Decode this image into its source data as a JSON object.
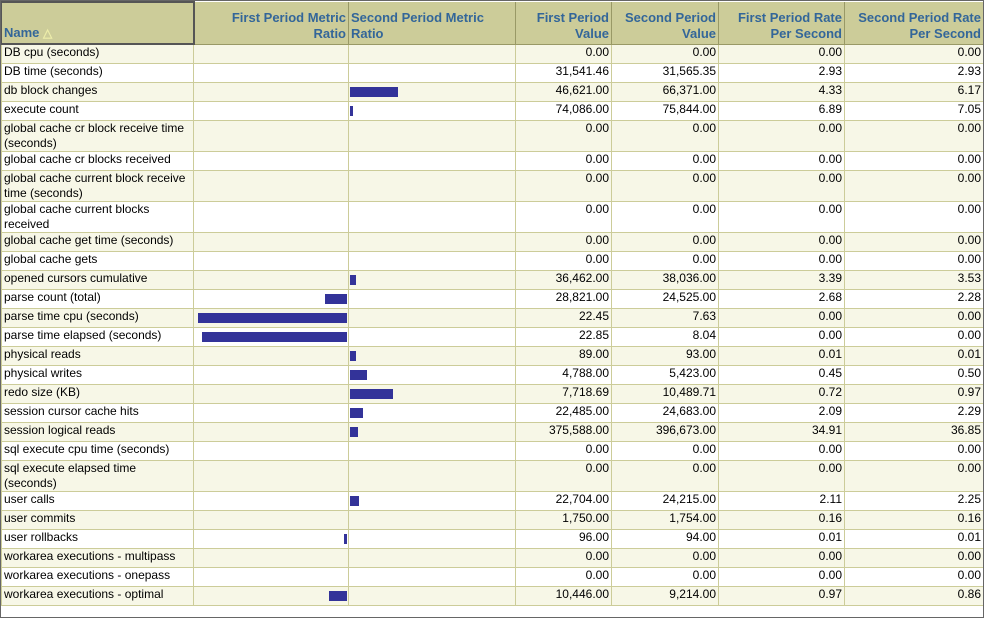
{
  "colors": {
    "bar": "#333399",
    "header_bg": "#cccc99",
    "header_text": "#336699"
  },
  "headers": {
    "name": "Name",
    "sort_icon": "sort-ascending-icon",
    "first_ratio": "First Period Metric Ratio",
    "second_ratio": "Second Period Metric Ratio",
    "first_value": "First Period Value",
    "second_value": "Second Period Value",
    "first_rate": "First Period Rate Per Second",
    "second_rate": "Second Period Rate Per Second"
  },
  "rows": [
    {
      "name": "DB cpu (seconds)",
      "fv": "0.00",
      "sv": "0.00",
      "fr": "0.00",
      "sr": "0.00",
      "first_bar": 0,
      "second_bar": 0
    },
    {
      "name": "DB time (seconds)",
      "fv": "31,541.46",
      "sv": "31,565.35",
      "fr": "2.93",
      "sr": "2.93",
      "first_bar": 0,
      "second_bar": 0
    },
    {
      "name": "db block changes",
      "fv": "46,621.00",
      "sv": "66,371.00",
      "fr": "4.33",
      "sr": "6.17",
      "first_bar": 0,
      "second_bar": 0.29
    },
    {
      "name": "execute count",
      "fv": "74,086.00",
      "sv": "75,844.00",
      "fr": "6.89",
      "sr": "7.05",
      "first_bar": 0,
      "second_bar": 0.02
    },
    {
      "name": "global cache cr block receive time (seconds)",
      "fv": "0.00",
      "sv": "0.00",
      "fr": "0.00",
      "sr": "0.00",
      "first_bar": 0,
      "second_bar": 0
    },
    {
      "name": "global cache cr blocks received",
      "fv": "0.00",
      "sv": "0.00",
      "fr": "0.00",
      "sr": "0.00",
      "first_bar": 0,
      "second_bar": 0
    },
    {
      "name": "global cache current block receive time (seconds)",
      "fv": "0.00",
      "sv": "0.00",
      "fr": "0.00",
      "sr": "0.00",
      "first_bar": 0,
      "second_bar": 0
    },
    {
      "name": "global cache current blocks received",
      "fv": "0.00",
      "sv": "0.00",
      "fr": "0.00",
      "sr": "0.00",
      "first_bar": 0,
      "second_bar": 0
    },
    {
      "name": "global cache get time (seconds)",
      "fv": "0.00",
      "sv": "0.00",
      "fr": "0.00",
      "sr": "0.00",
      "first_bar": 0,
      "second_bar": 0
    },
    {
      "name": "global cache gets",
      "fv": "0.00",
      "sv": "0.00",
      "fr": "0.00",
      "sr": "0.00",
      "first_bar": 0,
      "second_bar": 0
    },
    {
      "name": "opened cursors cumulative",
      "fv": "36,462.00",
      "sv": "38,036.00",
      "fr": "3.39",
      "sr": "3.53",
      "first_bar": 0,
      "second_bar": 0.036
    },
    {
      "name": "parse count (total)",
      "fv": "28,821.00",
      "sv": "24,525.00",
      "fr": "2.68",
      "sr": "2.28",
      "first_bar": 0.14,
      "second_bar": 0
    },
    {
      "name": "parse time cpu (seconds)",
      "fv": "22.45",
      "sv": "7.63",
      "fr": "0.00",
      "sr": "0.00",
      "first_bar": 0.97,
      "second_bar": 0
    },
    {
      "name": "parse time elapsed (seconds)",
      "fv": "22.85",
      "sv": "8.04",
      "fr": "0.00",
      "sr": "0.00",
      "first_bar": 0.94,
      "second_bar": 0
    },
    {
      "name": "physical reads",
      "fv": "89.00",
      "sv": "93.00",
      "fr": "0.01",
      "sr": "0.01",
      "first_bar": 0,
      "second_bar": 0.036
    },
    {
      "name": "physical writes",
      "fv": "4,788.00",
      "sv": "5,423.00",
      "fr": "0.45",
      "sr": "0.50",
      "first_bar": 0,
      "second_bar": 0.1
    },
    {
      "name": "redo size (KB)",
      "fv": "7,718.69",
      "sv": "10,489.71",
      "fr": "0.72",
      "sr": "0.97",
      "first_bar": 0,
      "second_bar": 0.26
    },
    {
      "name": "session cursor cache hits",
      "fv": "22,485.00",
      "sv": "24,683.00",
      "fr": "2.09",
      "sr": "2.29",
      "first_bar": 0,
      "second_bar": 0.08
    },
    {
      "name": "session logical reads",
      "fv": "375,588.00",
      "sv": "396,673.00",
      "fr": "34.91",
      "sr": "36.85",
      "first_bar": 0,
      "second_bar": 0.05
    },
    {
      "name": "sql execute cpu time (seconds)",
      "fv": "0.00",
      "sv": "0.00",
      "fr": "0.00",
      "sr": "0.00",
      "first_bar": 0,
      "second_bar": 0
    },
    {
      "name": "sql execute elapsed time (seconds)",
      "fv": "0.00",
      "sv": "0.00",
      "fr": "0.00",
      "sr": "0.00",
      "first_bar": 0,
      "second_bar": 0
    },
    {
      "name": "user calls",
      "fv": "22,704.00",
      "sv": "24,215.00",
      "fr": "2.11",
      "sr": "2.25",
      "first_bar": 0,
      "second_bar": 0.055
    },
    {
      "name": "user commits",
      "fv": "1,750.00",
      "sv": "1,754.00",
      "fr": "0.16",
      "sr": "0.16",
      "first_bar": 0,
      "second_bar": 0
    },
    {
      "name": "user rollbacks",
      "fv": "96.00",
      "sv": "94.00",
      "fr": "0.01",
      "sr": "0.01",
      "first_bar": 0.02,
      "second_bar": 0
    },
    {
      "name": "workarea executions - multipass",
      "fv": "0.00",
      "sv": "0.00",
      "fr": "0.00",
      "sr": "0.00",
      "first_bar": 0,
      "second_bar": 0
    },
    {
      "name": "workarea executions - onepass",
      "fv": "0.00",
      "sv": "0.00",
      "fr": "0.00",
      "sr": "0.00",
      "first_bar": 0,
      "second_bar": 0
    },
    {
      "name": "workarea executions - optimal",
      "fv": "10,446.00",
      "sv": "9,214.00",
      "fr": "0.97",
      "sr": "0.86",
      "first_bar": 0.12,
      "second_bar": 0
    }
  ]
}
